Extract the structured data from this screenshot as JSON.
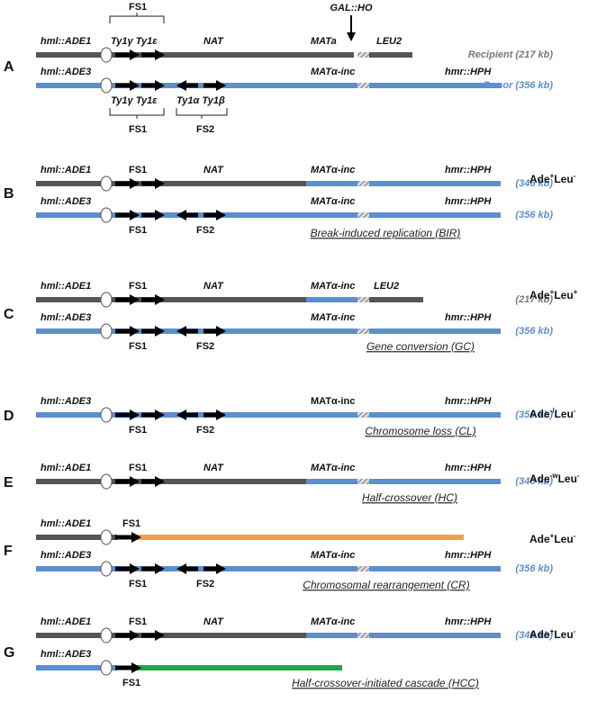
{
  "panels": [
    {
      "letter": "A",
      "top_label": "FS1",
      "ho_label": "GAL::HO",
      "chromosomes": [
        {
          "labels": [
            "hml::ADE1",
            "Ty1γ Ty1ε",
            "NAT",
            "MATa",
            "LEU2"
          ],
          "size": "Recipient (217 kb)"
        },
        {
          "labels": [
            "hml::ADE3",
            "MATα-inc",
            "hmr::HPH"
          ],
          "below": [
            "Ty1γ Ty1ε",
            "Ty1α Ty1β"
          ],
          "groups": [
            "FS1",
            "FS2"
          ],
          "size": "Donor (356 kb)"
        }
      ]
    },
    {
      "letter": "B",
      "chromosomes": [
        {
          "labels": [
            "hml::ADE1",
            "FS1",
            "NAT",
            "MATα-inc",
            "hmr::HPH"
          ],
          "size": "(346 kb)"
        },
        {
          "labels": [
            "hml::ADE3",
            "MATα-inc",
            "hmr::HPH"
          ],
          "below": [
            "FS1",
            "FS2"
          ],
          "size": "(356 kb)"
        }
      ],
      "phenotype": [
        "Ade",
        "+",
        "Leu",
        "-"
      ],
      "mechanism": "Break-induced replication (BIR)"
    },
    {
      "letter": "C",
      "chromosomes": [
        {
          "labels": [
            "hml::ADE1",
            "FS1",
            "NAT",
            "MATα-inc",
            "LEU2"
          ],
          "size": "(217 kb)"
        },
        {
          "labels": [
            "hml::ADE3",
            "MATα-inc",
            "hmr::HPH"
          ],
          "below": [
            "FS1",
            "FS2"
          ],
          "size": "(356 kb)"
        }
      ],
      "phenotype": [
        "Ade",
        "+",
        "Leu",
        "+"
      ],
      "mechanism": "Gene conversion (GC)"
    },
    {
      "letter": "D",
      "chromosomes": [
        {
          "labels": [
            "hml::ADE3",
            "MATα-inc",
            "hmr::HPH"
          ],
          "below": [
            "FS1",
            "FS2"
          ],
          "size": "(356 kb)"
        }
      ],
      "phenotype": [
        "Ade",
        "-/",
        "Leu",
        "-"
      ],
      "mechanism": "Chromosome loss (CL)"
    },
    {
      "letter": "E",
      "chromosomes": [
        {
          "labels": [
            "hml::ADE1",
            "FS1",
            "NAT",
            "MATα-inc",
            "hmr::HPH"
          ],
          "size": "(346 kb)"
        }
      ],
      "phenotype": [
        "Ade",
        "-w",
        "Leu",
        "-"
      ],
      "mechanism": "Half-crossover (HC)"
    },
    {
      "letter": "F",
      "chromosomes": [
        {
          "labels": [
            "hml::ADE1",
            "FS1"
          ]
        },
        {
          "labels": [
            "hml::ADE3",
            "MATα-inc",
            "hmr::HPH"
          ],
          "below": [
            "FS1",
            "FS2"
          ],
          "size": "(356 kb)"
        }
      ],
      "phenotype": [
        "Ade",
        "+",
        "Leu",
        "-"
      ],
      "mechanism": "Chromosomal rearrangement (CR)"
    },
    {
      "letter": "G",
      "chromosomes": [
        {
          "labels": [
            "hml::ADE1",
            "FS1",
            "NAT",
            "MATα-inc",
            "hmr::HPH"
          ],
          "size": "(346 kb)"
        },
        {
          "labels": [
            "hml::ADE3"
          ],
          "below": [
            "FS1"
          ]
        }
      ],
      "phenotype": [
        "Ade",
        "+",
        "Leu",
        "-"
      ],
      "mechanism": "Half-crossover-initiated cascade (HCC)"
    }
  ]
}
